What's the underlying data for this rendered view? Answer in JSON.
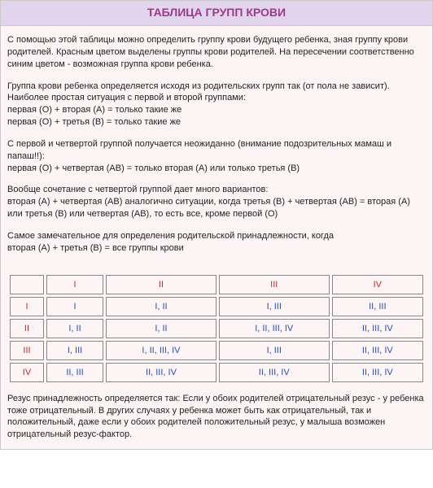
{
  "title": "ТАБЛИЦА ГРУПП КРОВИ",
  "paragraphs": {
    "p1": "С помощью этой таблицы можно определить группу крови будущего ребенка, зная группу крови родителей. Красным цветом выделены группы крови родителей. На пересечении соответственно синим цветом - возможная группа крови ребенка.",
    "p2": "Группа крови ребенка определяется исходя из родительских групп так (от пола не зависит). Наиболее простая ситуация с первой и второй группами:",
    "p2l1": "первая (O) + вторая (A) = только такие же",
    "p2l2": "первая (O) + третья (B) = только такие же",
    "p3": "С первой и четвертой группой получается неожиданно (внимание подозрительных мамаш и папаш!!):",
    "p3l1": "первая (O) + четвертая (AB) = только вторая (A) или только третья (B)",
    "p4": "Вообще сочетание с четвертой группой дает много вариантов:",
    "p4l1": "вторая (A) + четвертая (AB) аналогично ситуации, когда третья (B) + четвертая (AB) = вторая (A) или третья (B) или четвертая (AB), то есть все, кроме первой (O)",
    "p5": "Самое замечательное для определения родительской принадлежности, когда",
    "p5l1": "вторая (А) + третья (В) = все группы крови"
  },
  "table": {
    "cols": [
      "I",
      "II",
      "III",
      "IV"
    ],
    "rows": [
      "I",
      "II",
      "III",
      "IV"
    ],
    "cells": [
      [
        "I",
        "I, II",
        "I, III",
        "II, III"
      ],
      [
        "I, II",
        "I, II",
        "I, II, III, IV",
        "II, III, IV"
      ],
      [
        "I, III",
        "I, II, III, IV",
        "I, III",
        "II, III, IV"
      ],
      [
        "II, III",
        "II, III, IV",
        "II, III, IV",
        "II, III, IV"
      ]
    ]
  },
  "footer": "Резус принадлежность определяется так: Если у обоих родителей отрицательный резус - у ребенка тоже отрицательный. В других случаях у ребенка может быть как отрицательный, так и положительный, даже если у обоих родителей положительный резус, у малыша возможен отрицательный резус-фактор.",
  "colors": {
    "title_bg": "#e3d4ee",
    "title_color": "#9b3a86",
    "body_bg": "#fdf4f5",
    "header_text": "#c22b2b",
    "data_text": "#274fb3"
  }
}
